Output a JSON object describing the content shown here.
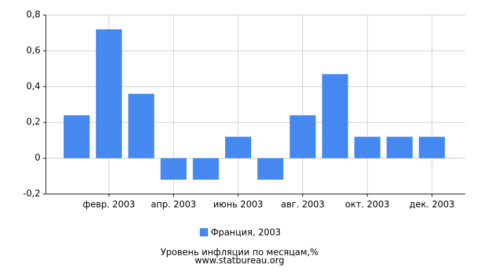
{
  "chart_data": {
    "type": "bar",
    "title": "Уровень инфляции по месяцам,%",
    "subtitle": "www.statbureau.org",
    "categories": [
      null,
      "февр. 2003",
      null,
      "апр. 2003",
      null,
      "июнь 2003",
      null,
      "авг. 2003",
      null,
      "окт. 2003",
      null,
      "дек. 2003"
    ],
    "series": [
      {
        "name": "Франция, 2003",
        "color": "#4589f0",
        "values": [
          0.24,
          0.72,
          0.36,
          -0.12,
          -0.12,
          0.12,
          -0.12,
          0.24,
          0.47,
          0.12,
          0.12,
          0.12
        ]
      }
    ],
    "ylim": [
      -0.2,
      0.8
    ],
    "yticks": [
      {
        "value": -0.2,
        "label": "-0,2"
      },
      0,
      {
        "value": 0.2,
        "label": "0,2"
      },
      {
        "value": 0.4,
        "label": "0,4"
      },
      {
        "value": 0.6,
        "label": "0,6"
      },
      {
        "value": 0.8,
        "label": "0,8"
      }
    ],
    "grid": true,
    "legend": "bottom"
  }
}
